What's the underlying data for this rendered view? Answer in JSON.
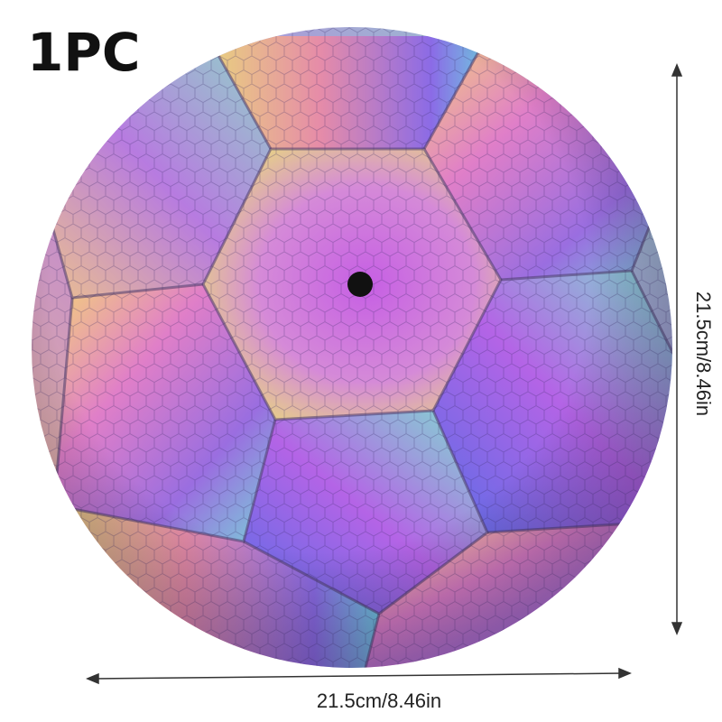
{
  "badge": "1PC",
  "height_label": "21.5cm/8.46in",
  "width_label": "21.5cm/8.46in"
}
